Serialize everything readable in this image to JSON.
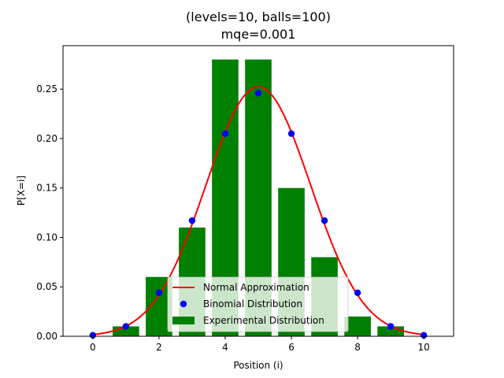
{
  "chart_data": {
    "type": "bar",
    "title_lines": [
      "(levels=10, balls=100)",
      "mqe=0.001"
    ],
    "xlabel": "Position (i)",
    "ylabel": "P[X=i]",
    "xlim": [
      -0.9,
      10.9
    ],
    "ylim": [
      0,
      0.294
    ],
    "xticks": [
      0,
      2,
      4,
      6,
      8,
      10
    ],
    "yticks": [
      0.0,
      0.05,
      0.1,
      0.15,
      0.2,
      0.25
    ],
    "ytick_labels": [
      "0.00",
      "0.05",
      "0.10",
      "0.15",
      "0.20",
      "0.25"
    ],
    "grid": false,
    "legend_position": "lower-center",
    "colors": {
      "normal": "#ff0000",
      "binomial": "#0000ff",
      "experimental": "#008000"
    },
    "series": [
      {
        "name": "Experimental Distribution",
        "kind": "bar",
        "x": [
          1,
          2,
          3,
          4,
          5,
          6,
          7,
          8,
          9
        ],
        "values": [
          0.01,
          0.06,
          0.11,
          0.28,
          0.28,
          0.15,
          0.08,
          0.02,
          0.01
        ]
      },
      {
        "name": "Binomial Distribution",
        "kind": "scatter",
        "x": [
          0,
          1,
          2,
          3,
          4,
          5,
          6,
          7,
          8,
          9,
          10
        ],
        "values": [
          0.001,
          0.01,
          0.044,
          0.117,
          0.205,
          0.246,
          0.205,
          0.117,
          0.044,
          0.01,
          0.001
        ]
      },
      {
        "name": "Normal Approximation",
        "kind": "line",
        "mean": 5,
        "std": 1.5811
      }
    ],
    "legend_order": [
      "Normal Approximation",
      "Binomial Distribution",
      "Experimental Distribution"
    ]
  }
}
